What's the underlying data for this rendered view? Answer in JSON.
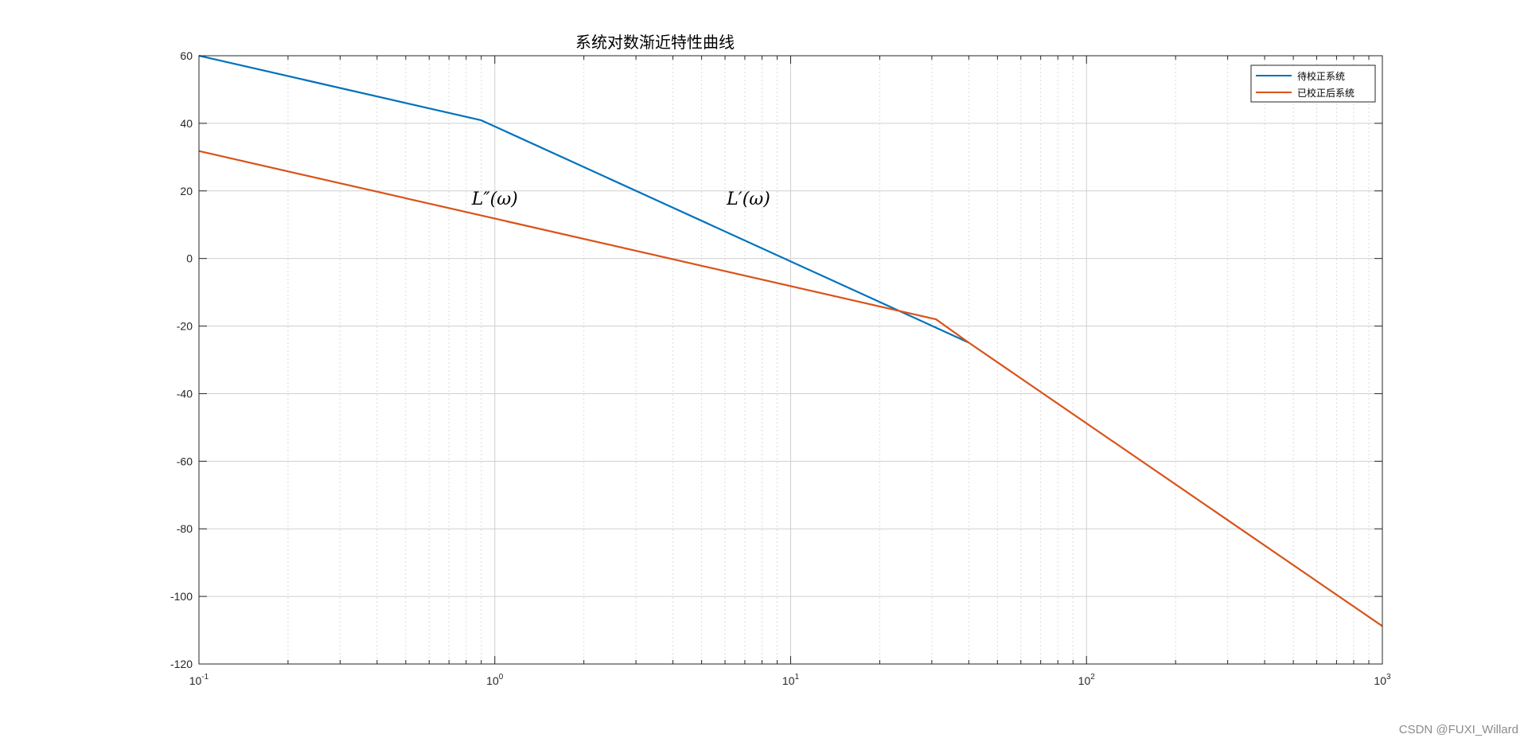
{
  "chart_data": {
    "type": "line",
    "title": "系统对数渐近特性曲线",
    "xlabel": "",
    "ylabel": "",
    "xscale": "log",
    "xlim": [
      0.1,
      1000
    ],
    "ylim": [
      -120,
      60
    ],
    "grid": true,
    "legend_location": "top-right",
    "x_ticks": [
      {
        "base": "10",
        "exp": "-1"
      },
      {
        "base": "10",
        "exp": "0"
      },
      {
        "base": "10",
        "exp": "1"
      },
      {
        "base": "10",
        "exp": "2"
      },
      {
        "base": "10",
        "exp": "3"
      }
    ],
    "y_ticks": [
      "60",
      "40",
      "20",
      "0",
      "-20",
      "-40",
      "-60",
      "-80",
      "-100",
      "-120"
    ],
    "series": [
      {
        "name": "待校正系统",
        "color": "#0072BD",
        "x": [
          0.1,
          0.9,
          40
        ],
        "y": [
          60,
          40.9,
          -24.9
        ]
      },
      {
        "name": "已校正后系统",
        "color": "#D95319",
        "x": [
          0.1,
          31,
          40,
          1000
        ],
        "y": [
          31.8,
          -18,
          -24.9,
          -108.8
        ]
      }
    ],
    "annotations": [
      {
        "text": "L″(ω)",
        "x": 1.0,
        "y": 16
      },
      {
        "text": "L′(ω)",
        "x": 7.2,
        "y": 16
      }
    ]
  },
  "watermark": "CSDN @FUXI_Willard"
}
